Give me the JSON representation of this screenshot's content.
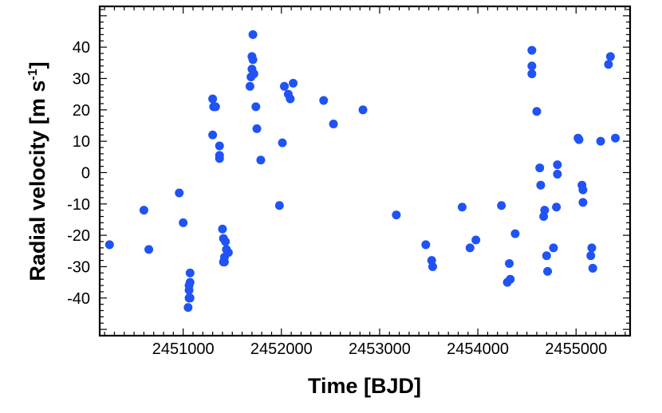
{
  "chart_data": {
    "type": "scatter",
    "xlabel": "Time [BJD]",
    "ylabel_main": "Radial velocity [m s",
    "ylabel_sup": "-1",
    "ylabel_tail": "]",
    "xlim": [
      2450150,
      2455550
    ],
    "ylim": [
      -52,
      53
    ],
    "xticks": [
      2451000,
      2452000,
      2453000,
      2454000,
      2455000
    ],
    "xtick_labels": [
      "2451000",
      "2452000",
      "2453000",
      "2454000",
      "2455000"
    ],
    "yticks": [
      40,
      30,
      20,
      10,
      0,
      -10,
      -20,
      -30,
      -40
    ],
    "ytick_labels": [
      "40",
      "30",
      "20",
      "10",
      "0",
      "-10",
      "-20",
      "-30",
      "-40"
    ],
    "point_color": "#1f53f5",
    "x": [
      2450250,
      2450600,
      2450650,
      2450960,
      2451000,
      2451050,
      2451060,
      2451060,
      2451060,
      2451070,
      2451070,
      2451070,
      2451300,
      2451300,
      2451310,
      2451320,
      2451330,
      2451370,
      2451370,
      2451370,
      2451400,
      2451410,
      2451410,
      2451420,
      2451420,
      2451430,
      2451440,
      2451460,
      2451680,
      2451690,
      2451700,
      2451700,
      2451710,
      2451710,
      2451720,
      2451740,
      2451750,
      2451790,
      2451980,
      2452010,
      2452030,
      2452070,
      2452090,
      2452120,
      2452430,
      2452530,
      2452830,
      2453170,
      2453470,
      2453530,
      2453540,
      2453840,
      2453920,
      2453980,
      2454240,
      2454300,
      2454320,
      2454330,
      2454380,
      2454550,
      2454550,
      2454550,
      2454600,
      2454630,
      2454640,
      2454670,
      2454680,
      2454700,
      2454710,
      2454770,
      2454800,
      2454810,
      2454810,
      2455020,
      2455030,
      2455060,
      2455070,
      2455070,
      2455150,
      2455160,
      2455170,
      2455250,
      2455330,
      2455350,
      2455400
    ],
    "y": [
      -23,
      -12,
      -24.5,
      -6.5,
      -16,
      -43,
      -40,
      -37.5,
      -36,
      -35,
      -32,
      -40,
      12,
      23.5,
      21,
      21,
      21,
      8.5,
      5.5,
      4.5,
      -18,
      -21,
      -28.5,
      -28.5,
      -27,
      -22,
      -24.5,
      -25.5,
      27.5,
      30.5,
      33,
      37,
      36,
      44,
      31.5,
      21,
      14,
      4,
      -10.5,
      9.5,
      27.5,
      25,
      23.5,
      28.5,
      23,
      15.5,
      20,
      -13.5,
      -23,
      -28,
      -30,
      -11,
      -24,
      -21.5,
      -10.5,
      -35,
      -29,
      -34,
      -19.5,
      39,
      34,
      31.5,
      19.5,
      1.5,
      -4,
      -14,
      -12,
      -26.5,
      -31.5,
      -24,
      -11,
      2.5,
      -0.5,
      11,
      10.5,
      -4,
      -5.5,
      -9.5,
      -26.5,
      -24,
      -30.5,
      10,
      34.5,
      37,
      11
    ]
  }
}
